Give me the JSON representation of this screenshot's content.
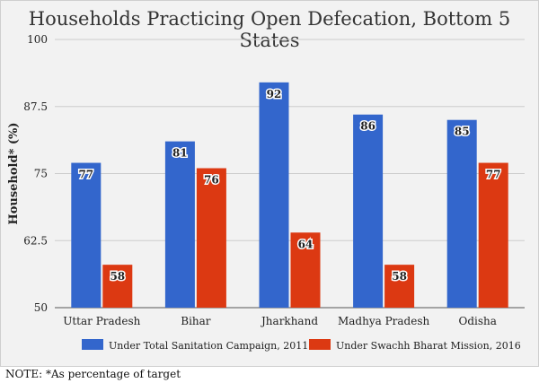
{
  "chart_data": {
    "type": "bar",
    "title": "Households Practicing Open Defecation, Bottom 5 States",
    "ylabel": "Household* (%)",
    "xlabel": "",
    "categories": [
      "Uttar Pradesh",
      "Bihar",
      "Jharkhand",
      "Madhya Pradesh",
      "Odisha"
    ],
    "series": [
      {
        "name": "Under Total Sanitation Campaign, 2011",
        "color": "#3366cc",
        "values": [
          77,
          81,
          92,
          86,
          85
        ]
      },
      {
        "name": "Under Swachh Bharat Mission, 2016",
        "color": "#dc3912",
        "values": [
          58,
          76,
          64,
          58,
          77
        ]
      }
    ],
    "ylim": [
      50,
      100
    ],
    "yticks": [
      "50",
      "62.5",
      "75",
      "87.5",
      "100"
    ],
    "grid": true,
    "legend": "bottom"
  },
  "note": "NOTE: *As percentage of target"
}
